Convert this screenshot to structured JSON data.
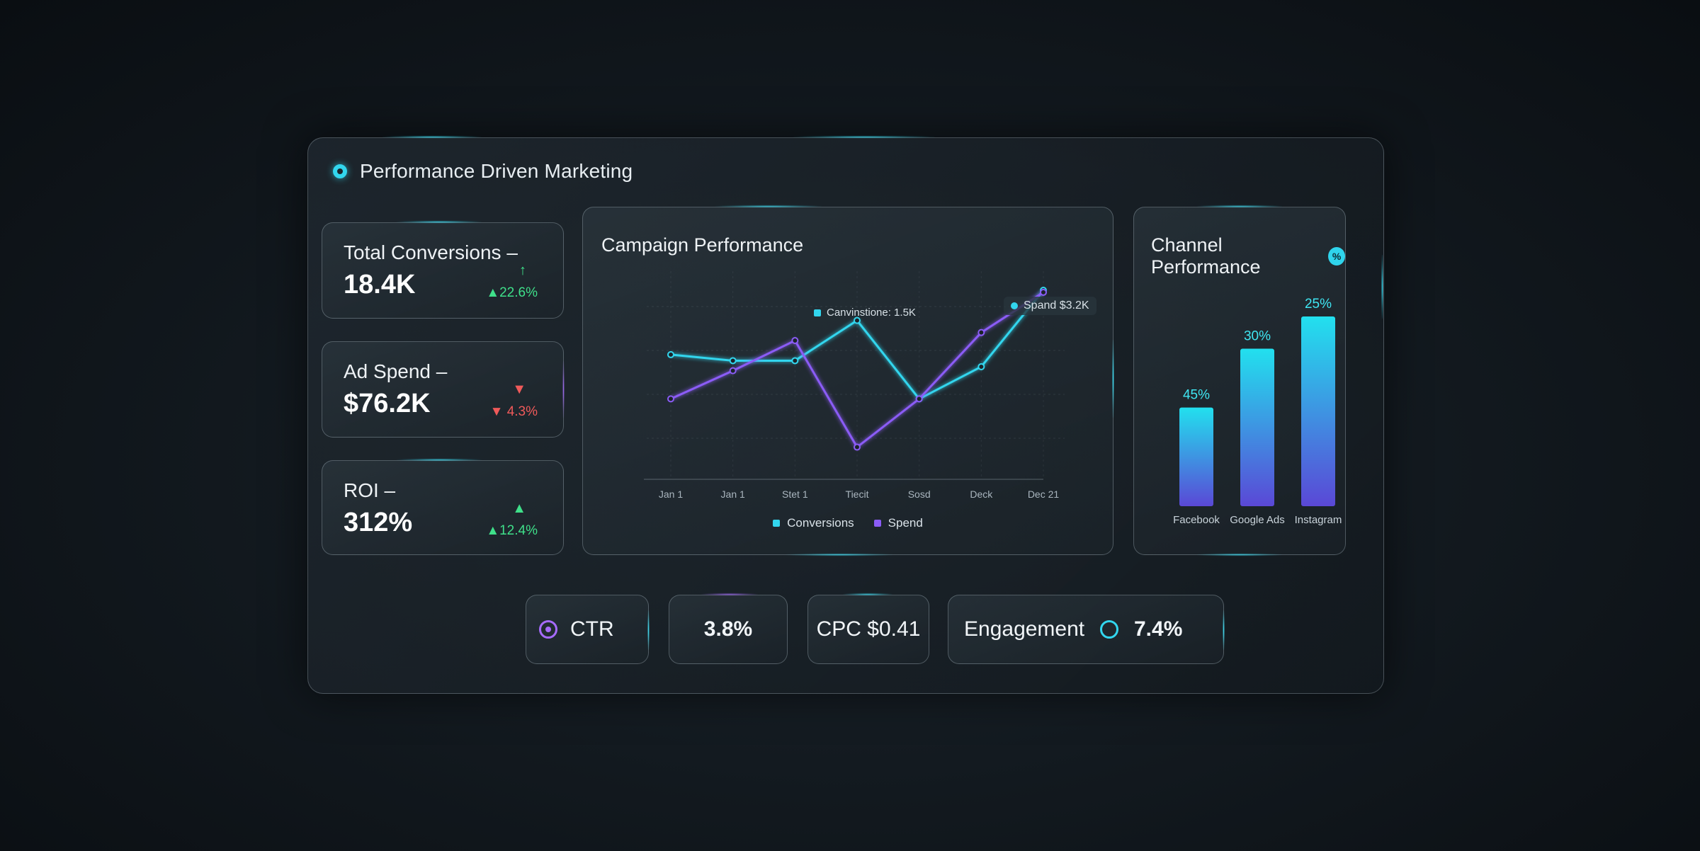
{
  "header": {
    "title": "Performance Driven Marketing"
  },
  "kpis": [
    {
      "label": "Total Conversions –",
      "value": "18.4K",
      "icon": "↑",
      "delta": "▲22.6%",
      "trend": "up"
    },
    {
      "label": "Ad Spend –",
      "value": "$76.2K",
      "icon": "▼",
      "delta": "▼ 4.3%",
      "trend": "down"
    },
    {
      "label": "ROI –",
      "value": "312%",
      "icon": "▲",
      "delta": "▲12.4%",
      "trend": "up"
    }
  ],
  "campaign": {
    "title": "Campaign Performance",
    "tooltip_conversions": "Canvinstione: 1.5K",
    "tooltip_spend": "Spand $3.2K",
    "legend": [
      "Conversions",
      "Spend"
    ],
    "colors": {
      "conversions": "#32d6ee",
      "spend": "#8b5cf6"
    }
  },
  "channels": {
    "title": "Channel Performance",
    "badge": "%",
    "colors": {
      "top": "#22e0ee",
      "bottom": "#5a48d6"
    }
  },
  "metrics": {
    "ctr_label": "CTR",
    "ctr_value": "3.8%",
    "cpc_label": "CPC $0.41",
    "engagement_label": "Engagement",
    "engagement_value": "7.4%"
  },
  "chart_data": [
    {
      "type": "line",
      "title": "Campaign Performance",
      "x": [
        "Jan 1",
        "Jan 1",
        "Stet 1",
        "Tiecit",
        "Sosd",
        "Deck",
        "Dec 21"
      ],
      "series": [
        {
          "name": "Conversions",
          "values": [
            62,
            59,
            59,
            79,
            40,
            56,
            94
          ]
        },
        {
          "name": "Spend",
          "values": [
            40,
            54,
            69,
            16,
            40,
            73,
            93
          ]
        }
      ],
      "ylim": [
        0,
        100
      ],
      "grid": true,
      "legend": "bottom"
    },
    {
      "type": "bar",
      "title": "Channel Performance",
      "categories": [
        "Facebook",
        "Google Ads",
        "Instagram"
      ],
      "values": [
        45,
        30,
        25
      ],
      "value_labels": [
        "45%",
        "30%",
        "25%"
      ],
      "bar_levels": [
        0.52,
        0.83,
        1.0
      ]
    }
  ]
}
